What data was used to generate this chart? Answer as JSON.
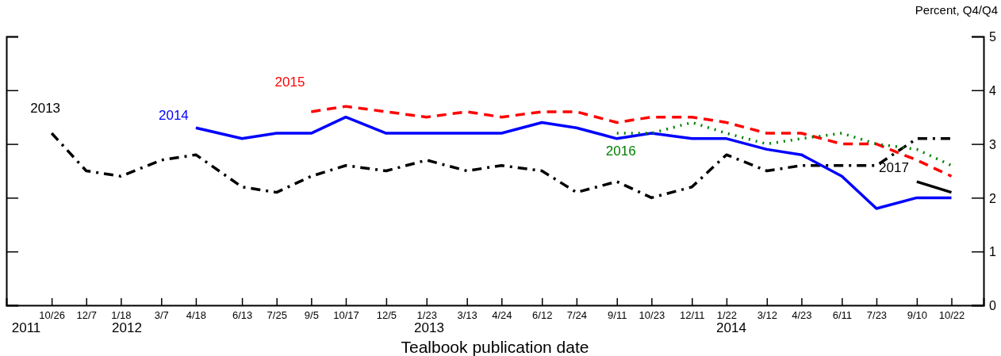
{
  "chart_data": {
    "type": "line",
    "xlabel": "Tealbook publication date",
    "ylabel": "Percent, Q4/Q4",
    "xlim": [
      "2011-09-01",
      "2014-11-30"
    ],
    "ylim": [
      0,
      5
    ],
    "yticks": [
      0,
      1,
      2,
      3,
      4,
      5
    ],
    "annotations": [
      "2011",
      "2012",
      "2013",
      "2014"
    ],
    "xticks": [
      {
        "value": "2011-10-26",
        "label": "10/26"
      },
      {
        "value": "2011-12-07",
        "label": "12/7"
      },
      {
        "value": "2012-01-18",
        "label": "1/18"
      },
      {
        "value": "2012-03-07",
        "label": "3/7"
      },
      {
        "value": "2012-04-18",
        "label": "4/18"
      },
      {
        "value": "2012-06-13",
        "label": "6/13"
      },
      {
        "value": "2012-07-25",
        "label": "7/25"
      },
      {
        "value": "2012-09-05",
        "label": "9/5"
      },
      {
        "value": "2012-10-17",
        "label": "10/17"
      },
      {
        "value": "2012-12-05",
        "label": "12/5"
      },
      {
        "value": "2013-01-23",
        "label": "1/23"
      },
      {
        "value": "2013-03-13",
        "label": "3/13"
      },
      {
        "value": "2013-04-24",
        "label": "4/24"
      },
      {
        "value": "2013-06-12",
        "label": "6/12"
      },
      {
        "value": "2013-07-24",
        "label": "7/24"
      },
      {
        "value": "2013-09-11",
        "label": "9/11"
      },
      {
        "value": "2013-10-23",
        "label": "10/23"
      },
      {
        "value": "2013-12-11",
        "label": "12/11"
      },
      {
        "value": "2014-01-22",
        "label": "1/22"
      },
      {
        "value": "2014-03-12",
        "label": "3/12"
      },
      {
        "value": "2014-04-23",
        "label": "4/23"
      },
      {
        "value": "2014-06-11",
        "label": "6/11"
      },
      {
        "value": "2014-07-23",
        "label": "7/23"
      },
      {
        "value": "2014-09-10",
        "label": "9/10"
      },
      {
        "value": "2014-10-22",
        "label": "10/22"
      }
    ],
    "grid": false,
    "legend": false,
    "marker": "none",
    "series": [
      {
        "name": "2013",
        "color": "#000000",
        "line_style": "dashdot",
        "x": [
          "2011-10-26",
          "2011-12-07",
          "2012-01-18",
          "2012-03-07",
          "2012-04-18",
          "2012-06-13",
          "2012-07-25",
          "2012-09-05",
          "2012-10-17",
          "2012-12-05",
          "2013-01-23",
          "2013-03-13",
          "2013-04-24",
          "2013-06-12",
          "2013-07-24",
          "2013-09-11",
          "2013-10-23",
          "2013-12-11",
          "2014-01-22",
          "2014-03-12",
          "2014-04-23",
          "2014-06-11",
          "2014-07-23",
          "2014-09-10",
          "2014-10-22"
        ],
        "values": [
          3.2,
          2.5,
          2.4,
          2.7,
          2.8,
          2.2,
          2.1,
          2.4,
          2.6,
          2.5,
          2.7,
          2.5,
          2.6,
          2.5,
          2.1,
          2.3,
          2.0,
          2.2,
          2.8,
          2.5,
          2.6,
          2.6,
          2.6,
          3.1,
          3.1
        ]
      },
      {
        "name": "2014",
        "color": "#0000ff",
        "line_style": "solid",
        "x": [
          "2012-04-18",
          "2012-06-13",
          "2012-07-25",
          "2012-09-05",
          "2012-10-17",
          "2012-12-05",
          "2013-01-23",
          "2013-03-13",
          "2013-04-24",
          "2013-06-12",
          "2013-07-24",
          "2013-09-11",
          "2013-10-23",
          "2013-12-11",
          "2014-01-22",
          "2014-03-12",
          "2014-04-23",
          "2014-06-11",
          "2014-07-23",
          "2014-09-10",
          "2014-10-22"
        ],
        "values": [
          3.3,
          3.1,
          3.2,
          3.2,
          3.5,
          3.2,
          3.2,
          3.2,
          3.2,
          3.4,
          3.3,
          3.1,
          3.2,
          3.1,
          3.1,
          2.9,
          2.8,
          2.4,
          1.8,
          2.0,
          2.0
        ]
      },
      {
        "name": "2015",
        "color": "#ff0000",
        "line_style": "dashed",
        "x": [
          "2012-09-05",
          "2012-10-17",
          "2012-12-05",
          "2013-01-23",
          "2013-03-13",
          "2013-04-24",
          "2013-06-12",
          "2013-07-24",
          "2013-09-11",
          "2013-10-23",
          "2013-12-11",
          "2014-01-22",
          "2014-03-12",
          "2014-04-23",
          "2014-06-11",
          "2014-07-23",
          "2014-09-10",
          "2014-10-22"
        ],
        "values": [
          3.6,
          3.7,
          3.6,
          3.5,
          3.6,
          3.5,
          3.6,
          3.6,
          3.4,
          3.5,
          3.5,
          3.4,
          3.2,
          3.2,
          3.0,
          3.0,
          2.7,
          2.4
        ]
      },
      {
        "name": "2016",
        "color": "#008000",
        "line_style": "dotted",
        "x": [
          "2013-09-11",
          "2013-10-23",
          "2013-12-11",
          "2014-01-22",
          "2014-03-12",
          "2014-04-23",
          "2014-06-11",
          "2014-07-23",
          "2014-09-10",
          "2014-10-22"
        ],
        "values": [
          3.2,
          3.2,
          3.4,
          3.2,
          3.0,
          3.1,
          3.2,
          3.0,
          2.9,
          2.6
        ]
      },
      {
        "name": "2017",
        "color": "#000000",
        "line_style": "solid",
        "x": [
          "2014-09-10",
          "2014-10-22"
        ],
        "values": [
          2.3,
          2.1
        ]
      }
    ]
  }
}
